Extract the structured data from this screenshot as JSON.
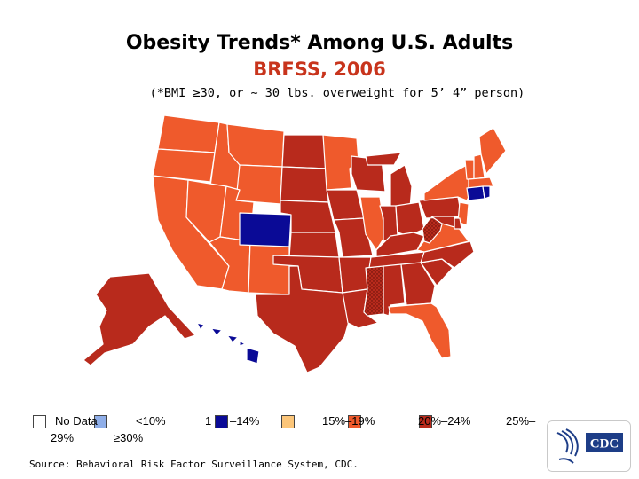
{
  "header": {
    "title": "Obesity Trends* Among U.S. Adults",
    "subtitle": "BRFSS, 2006",
    "note": "(*BMI ≥30, or ~ 30 lbs. overweight for 5’ 4” person)"
  },
  "colors": {
    "title": "#000000",
    "subtitle": "#c8341c",
    "no_data": "#ffffff",
    "lt10": "#8faee8",
    "10_14": "#0a0a96",
    "15_19": "#fcc67a",
    "20_24": "#ef5a2c",
    "25_29": "#b82a1c",
    "ge30": "#ffffff",
    "state_border": "#ffffff",
    "map_outline": "#555555"
  },
  "legend": {
    "items": [
      {
        "key": "no_data",
        "label": "No Data"
      },
      {
        "key": "lt10",
        "label": "<10%"
      },
      {
        "key": "10_14",
        "label": "10%–14%"
      },
      {
        "key": "15_19",
        "label": "15%–19%"
      },
      {
        "key": "20_24",
        "label": "20%–24%"
      },
      {
        "key": "25_29",
        "label": "25%–29%"
      },
      {
        "key": "ge30",
        "label": "≥30%"
      }
    ],
    "row1": {
      "no_data": "No Data",
      "lt10": "<10%",
      "10_14_prefix": "1",
      "10_14_rest": "–14%",
      "15_19": "15%–19%",
      "20_24": "20%–24%",
      "25_29_start": "25%–"
    },
    "row2": {
      "25_29_end": "29%",
      "ge30": "≥30%"
    }
  },
  "source": "Source: Behavioral Risk Factor Surveillance System, CDC.",
  "logo": {
    "text": "CDC"
  },
  "map": {
    "states": [
      {
        "name": "WA",
        "category": "20_24"
      },
      {
        "name": "OR",
        "category": "20_24"
      },
      {
        "name": "CA",
        "category": "20_24"
      },
      {
        "name": "ID",
        "category": "20_24"
      },
      {
        "name": "NV",
        "category": "20_24"
      },
      {
        "name": "MT",
        "category": "20_24"
      },
      {
        "name": "WY",
        "category": "20_24"
      },
      {
        "name": "UT",
        "category": "20_24"
      },
      {
        "name": "AZ",
        "category": "20_24"
      },
      {
        "name": "NM",
        "category": "20_24"
      },
      {
        "name": "CO",
        "category": "10_14"
      },
      {
        "name": "ND",
        "category": "25_29"
      },
      {
        "name": "SD",
        "category": "25_29"
      },
      {
        "name": "NE",
        "category": "25_29"
      },
      {
        "name": "KS",
        "category": "25_29"
      },
      {
        "name": "OK",
        "category": "25_29"
      },
      {
        "name": "TX",
        "category": "25_29"
      },
      {
        "name": "MN",
        "category": "20_24"
      },
      {
        "name": "IA",
        "category": "25_29"
      },
      {
        "name": "MO",
        "category": "25_29"
      },
      {
        "name": "AR",
        "category": "25_29"
      },
      {
        "name": "LA",
        "category": "25_29"
      },
      {
        "name": "WI",
        "category": "25_29"
      },
      {
        "name": "IL",
        "category": "20_24"
      },
      {
        "name": "MI",
        "category": "25_29"
      },
      {
        "name": "IN",
        "category": "25_29"
      },
      {
        "name": "OH",
        "category": "25_29"
      },
      {
        "name": "KY",
        "category": "25_29"
      },
      {
        "name": "TN",
        "category": "25_29"
      },
      {
        "name": "MS",
        "category": "ge30"
      },
      {
        "name": "AL",
        "category": "25_29"
      },
      {
        "name": "GA",
        "category": "25_29"
      },
      {
        "name": "FL",
        "category": "20_24"
      },
      {
        "name": "SC",
        "category": "25_29"
      },
      {
        "name": "NC",
        "category": "25_29"
      },
      {
        "name": "VA",
        "category": "20_24"
      },
      {
        "name": "WV",
        "category": "ge30"
      },
      {
        "name": "PA",
        "category": "25_29"
      },
      {
        "name": "NY",
        "category": "20_24"
      },
      {
        "name": "VT",
        "category": "20_24"
      },
      {
        "name": "NH",
        "category": "20_24"
      },
      {
        "name": "ME",
        "category": "20_24"
      },
      {
        "name": "MA",
        "category": "20_24"
      },
      {
        "name": "CT",
        "category": "10_14"
      },
      {
        "name": "RI",
        "category": "10_14"
      },
      {
        "name": "NJ",
        "category": "20_24"
      },
      {
        "name": "DE",
        "category": "25_29"
      },
      {
        "name": "MD",
        "category": "25_29"
      },
      {
        "name": "AK",
        "category": "25_29"
      },
      {
        "name": "HI",
        "category": "10_14"
      }
    ]
  }
}
